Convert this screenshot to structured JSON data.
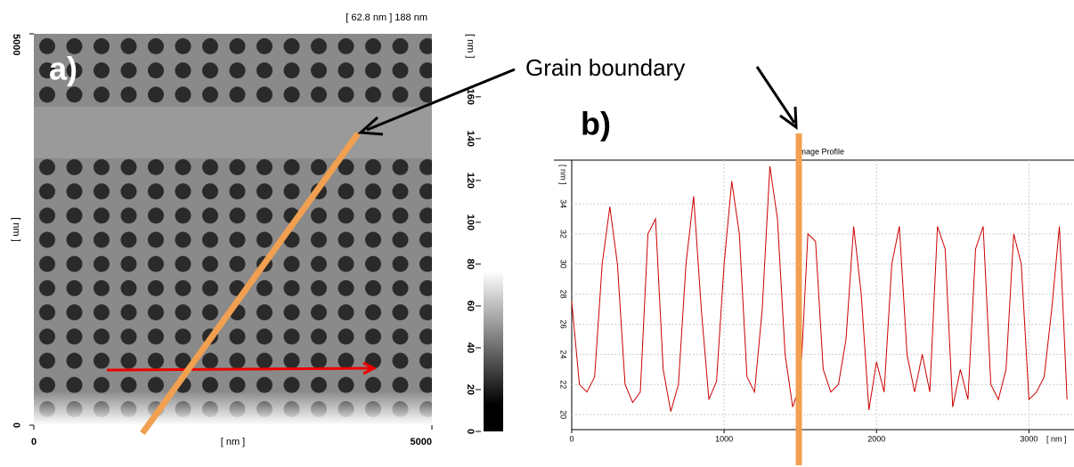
{
  "annotations": {
    "panel_a": "a)",
    "panel_b": "b)",
    "grain_boundary": "Grain boundary"
  },
  "chart_data": [
    {
      "type": "image",
      "header": "[ 62.8 nm ] 188 nm",
      "xlabel": "[ nm ]",
      "ylabel": "[ nm ]",
      "xlim": [
        0,
        5000
      ],
      "ylim": [
        0,
        5000
      ],
      "xticks": [
        0,
        5000
      ],
      "yticks": [
        0,
        5000
      ],
      "colorbar": {
        "label": "[ nm ]",
        "lim": [
          0,
          188
        ],
        "ticks": [
          0,
          20,
          40,
          60,
          80,
          100,
          120,
          140,
          160
        ]
      }
    },
    {
      "type": "line",
      "title": "Image Profile",
      "xlabel": "[ nm ]",
      "ylabel": "[ nm ]",
      "xlim": [
        0,
        3290
      ],
      "ylim": [
        19,
        36.9
      ],
      "xticks": [
        0,
        1000,
        2000,
        3000
      ],
      "yticks": [
        20,
        22,
        24,
        26,
        28,
        30,
        32,
        34
      ],
      "grid": true,
      "series": [
        {
          "color": "#cc0000",
          "x": [
            0,
            50,
            100,
            150,
            200,
            250,
            300,
            350,
            400,
            450,
            500,
            550,
            600,
            650,
            700,
            750,
            800,
            850,
            900,
            950,
            1000,
            1050,
            1100,
            1150,
            1200,
            1250,
            1300,
            1350,
            1400,
            1450,
            1500,
            1550,
            1600,
            1650,
            1700,
            1750,
            1800,
            1850,
            1900,
            1950,
            2000,
            2050,
            2100,
            2150,
            2200,
            2250,
            2300,
            2350,
            2400,
            2450,
            2500,
            2550,
            2600,
            2650,
            2700,
            2750,
            2800,
            2850,
            2900,
            2950,
            3000,
            3050,
            3100,
            3150,
            3200,
            3250
          ],
          "values": [
            27.5,
            22,
            21.5,
            22.5,
            30,
            33.8,
            30,
            22,
            20.8,
            21.5,
            32,
            33,
            23,
            20.2,
            22,
            30,
            34.5,
            27,
            21,
            22.2,
            30,
            35.5,
            32,
            22.5,
            21.5,
            27,
            36.5,
            33,
            24,
            20.5,
            22,
            32,
            31.5,
            23,
            21.5,
            22,
            25,
            32.5,
            28,
            20.3,
            23.5,
            21.5,
            30,
            32.5,
            24,
            21.5,
            24,
            21.5,
            32.5,
            31,
            20.5,
            23,
            21,
            31,
            32.5,
            22,
            21,
            23,
            32,
            30,
            21,
            21.5,
            22.5,
            27,
            32.5,
            21
          ]
        }
      ]
    }
  ]
}
